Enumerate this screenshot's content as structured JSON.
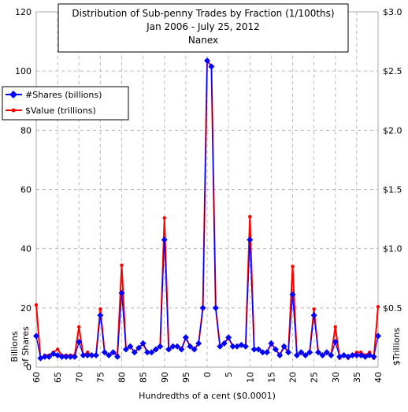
{
  "chart_data": {
    "type": "line",
    "title": "Distribution of Sub-penny Trades by Fraction (1/100ths)",
    "subtitle": "Jan 2006 - July 25, 2012",
    "source": "Nanex",
    "xlabel": "Hundredths of a cent ($0.0001)",
    "ylabel_line1": "Billions",
    "ylabel_line2": "of Shares",
    "y2label": "$Trillions",
    "ylim": [
      0,
      120
    ],
    "y2lim": [
      0,
      3.0
    ],
    "y_ticks": [
      "0",
      "20",
      "40",
      "60",
      "80",
      "100",
      "120"
    ],
    "y2_ticks": [
      "",
      "$0.5",
      "$1.0",
      "$1.5",
      "$2.0",
      "$2.5",
      "$3.0"
    ],
    "x_tick_labels": [
      "60",
      "65",
      "70",
      "75",
      "80",
      "85",
      "90",
      "95",
      "0",
      "5",
      "10",
      "15",
      "20",
      "25",
      "30",
      "35",
      "40"
    ],
    "x_tick_positions": [
      0,
      5,
      10,
      15,
      20,
      25,
      30,
      35,
      40,
      45,
      50,
      55,
      60,
      65,
      70,
      75,
      80
    ],
    "x": [
      0,
      1,
      2,
      3,
      4,
      5,
      6,
      7,
      8,
      9,
      10,
      11,
      12,
      13,
      14,
      15,
      16,
      17,
      18,
      19,
      20,
      21,
      22,
      23,
      24,
      25,
      26,
      27,
      28,
      29,
      30,
      31,
      32,
      33,
      34,
      35,
      36,
      37,
      38,
      39,
      40,
      41,
      42,
      43,
      44,
      45,
      46,
      47,
      48,
      49,
      50,
      51,
      52,
      53,
      54,
      55,
      56,
      57,
      58,
      59,
      60,
      61,
      62,
      63,
      64,
      65,
      66,
      67,
      68,
      69,
      70,
      71,
      72,
      73,
      74,
      75,
      76,
      77,
      78,
      79,
      80
    ],
    "legend_position": "left",
    "series": [
      {
        "name": "#Shares (billions)",
        "color": "#0000ff",
        "axis": "left",
        "values": [
          10.5,
          3,
          3.5,
          3.5,
          4.5,
          4,
          3.5,
          3.5,
          3.5,
          3.5,
          8.5,
          4,
          4,
          4,
          4,
          17.5,
          5,
          4,
          5,
          3.5,
          25,
          6,
          7,
          5,
          6.5,
          8,
          5,
          5,
          6,
          7,
          43,
          6,
          7,
          7,
          6,
          10,
          7,
          6,
          8,
          20,
          103.5,
          101.5,
          20,
          7,
          8,
          10,
          7,
          7,
          7.5,
          7,
          43,
          6,
          6,
          5,
          5,
          8,
          6,
          4,
          7,
          5,
          24.5,
          4,
          5,
          4,
          5,
          17.5,
          5,
          4,
          5,
          4,
          8.5,
          3.5,
          4,
          3.5,
          4,
          4,
          4,
          3.5,
          4,
          3.5,
          10.5
        ]
      },
      {
        "name": "$Value (trillions)",
        "color": "#ff0000",
        "axis": "right",
        "values": [
          0.525,
          0.075,
          0.1,
          0.1,
          0.125,
          0.15,
          0.1,
          0.1,
          0.1,
          0.1,
          0.34,
          0.1,
          0.125,
          0.1,
          0.1,
          0.49,
          0.125,
          0.1,
          0.125,
          0.1,
          0.86,
          0.15,
          0.175,
          0.125,
          0.16,
          0.2,
          0.125,
          0.125,
          0.15,
          0.175,
          1.26,
          0.15,
          0.175,
          0.175,
          0.15,
          0.25,
          0.175,
          0.15,
          0.2,
          0.5,
          2.59,
          2.54,
          0.5,
          0.175,
          0.2,
          0.25,
          0.175,
          0.175,
          0.19,
          0.175,
          1.27,
          0.15,
          0.15,
          0.125,
          0.125,
          0.2,
          0.15,
          0.1,
          0.175,
          0.125,
          0.85,
          0.1,
          0.125,
          0.1,
          0.125,
          0.49,
          0.125,
          0.1,
          0.125,
          0.1,
          0.34,
          0.075,
          0.1,
          0.075,
          0.1,
          0.125,
          0.125,
          0.1,
          0.125,
          0.075,
          0.51
        ]
      }
    ]
  }
}
